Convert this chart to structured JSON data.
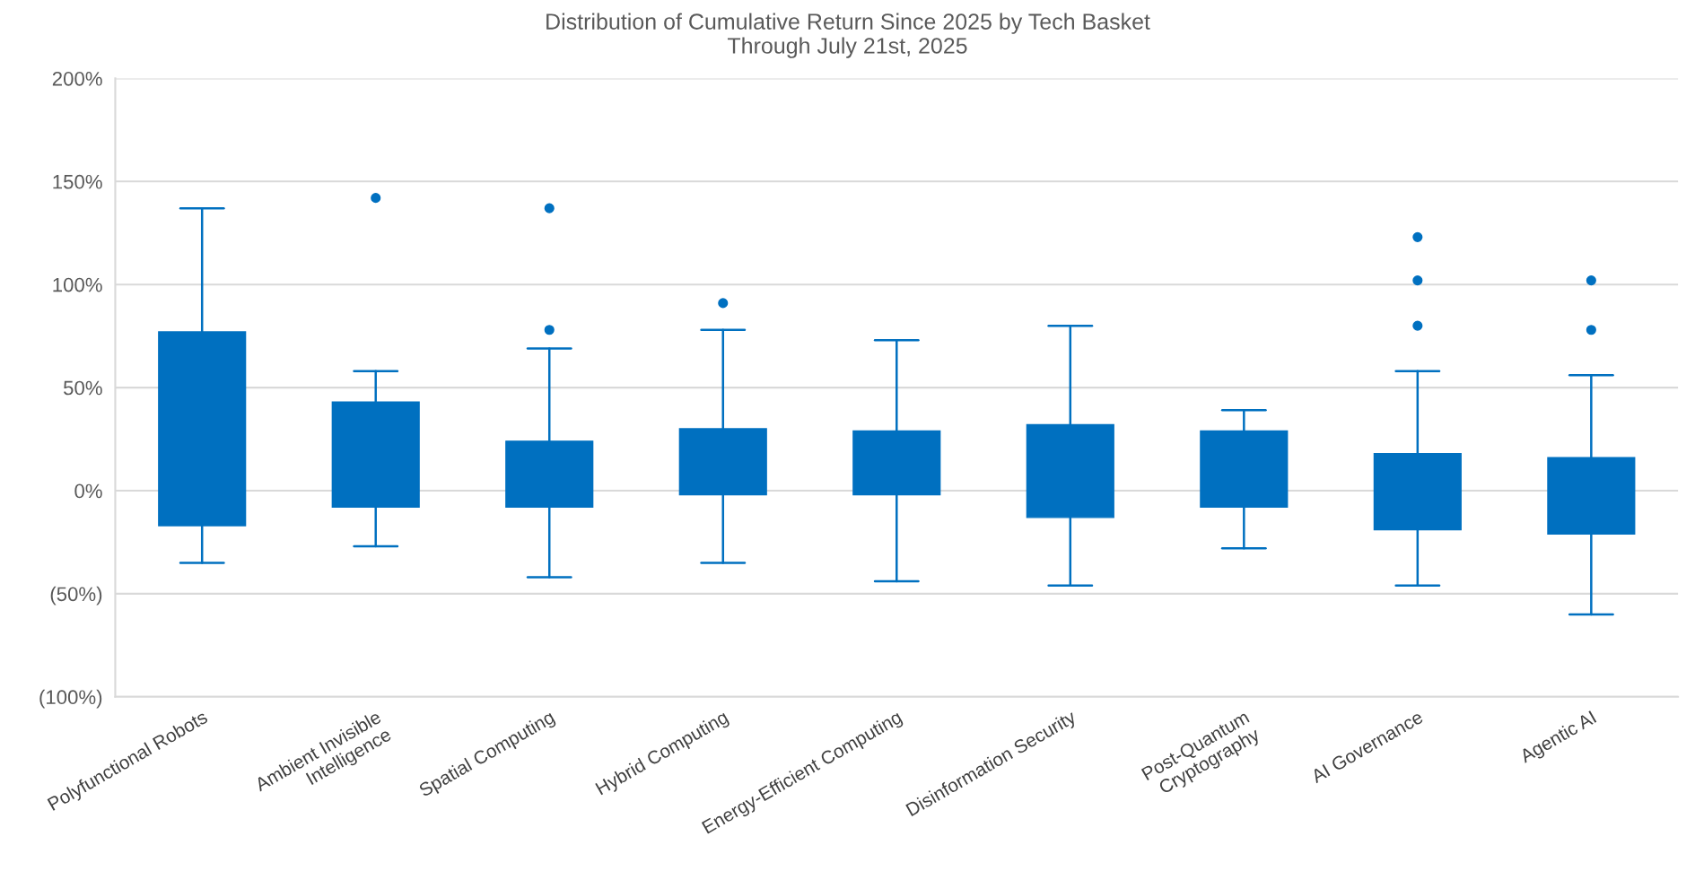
{
  "chart_data": {
    "type": "box",
    "title": "Distribution of Cumulative Return Since 2025 by Tech Basket\nThrough July 21st, 2025",
    "categories": [
      "Polyfunctional Robots",
      "Ambient Invisible\nIntelligence",
      "Spatial Computing",
      "Hybrid Computing",
      "Energy-Efficient Computing",
      "Disinformation Security",
      "Post-Quantum\nCryptography",
      "AI Governance",
      "Agentic AI"
    ],
    "color": "#0070c0",
    "boxes": [
      {
        "low": -35,
        "q1": -17,
        "q3": 77,
        "high": 137
      },
      {
        "low": -27,
        "q1": -8,
        "q3": 43,
        "high": 58,
        "outliers": [
          142
        ]
      },
      {
        "low": -42,
        "q1": -8,
        "q3": 24,
        "high": 69,
        "outliers": [
          137,
          78
        ]
      },
      {
        "low": -35,
        "q1": -2,
        "q3": 30,
        "high": 78,
        "outliers": [
          91
        ]
      },
      {
        "low": -44,
        "q1": -2,
        "q3": 29,
        "high": 73
      },
      {
        "low": -46,
        "q1": -13,
        "q3": 32,
        "high": 80
      },
      {
        "low": -28,
        "q1": -8,
        "q3": 29,
        "high": 39
      },
      {
        "low": -46,
        "q1": -19,
        "q3": 18,
        "high": 58,
        "outliers": [
          123,
          102,
          80
        ]
      },
      {
        "low": -60,
        "q1": -21,
        "q3": 16,
        "high": 56,
        "outliers": [
          102,
          78
        ]
      }
    ],
    "ylim": [
      -100,
      200
    ],
    "yticks": [
      {
        "value": -100,
        "label": "(100%)"
      },
      {
        "value": -50,
        "label": "(50%)"
      },
      {
        "value": 0,
        "label": "0%"
      },
      {
        "value": 50,
        "label": "50%"
      },
      {
        "value": 100,
        "label": "100%"
      },
      {
        "value": 150,
        "label": "150%"
      },
      {
        "value": 200,
        "label": "200%"
      }
    ],
    "grid": "y"
  }
}
